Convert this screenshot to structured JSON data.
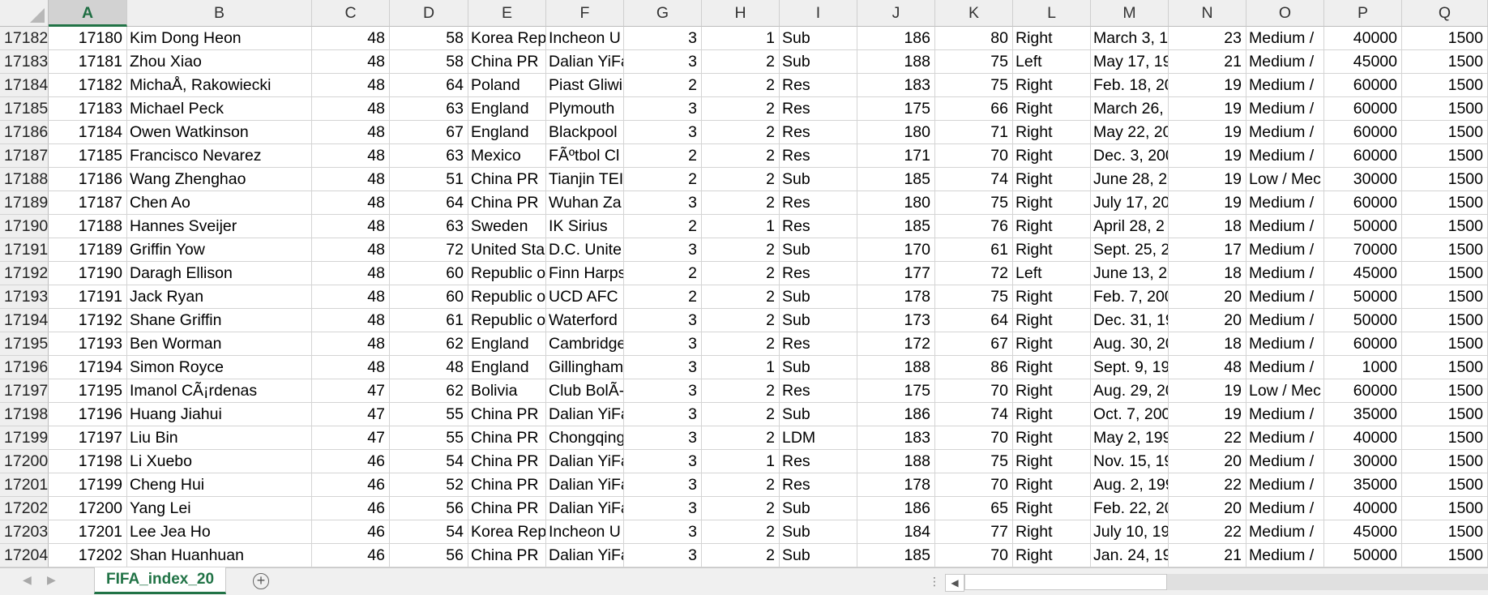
{
  "columns": [
    "A",
    "B",
    "C",
    "D",
    "E",
    "F",
    "G",
    "H",
    "I",
    "J",
    "K",
    "L",
    "M",
    "N",
    "O",
    "P",
    "Q"
  ],
  "active_column": "A",
  "rows": [
    {
      "row": "17182",
      "cells": [
        "17180",
        "Kim Dong Heon",
        "48",
        "58",
        "Korea Rep",
        "Incheon U",
        "3",
        "1",
        "Sub",
        "186",
        "80",
        "Right",
        "March 3, 1",
        "23",
        "Medium /",
        "40000",
        "1500"
      ]
    },
    {
      "row": "17183",
      "cells": [
        "17181",
        "Zhou Xiao",
        "48",
        "58",
        "China PR",
        "Dalian YiFa",
        "3",
        "2",
        "Sub",
        "188",
        "75",
        "Left",
        "May 17, 19",
        "21",
        "Medium /",
        "45000",
        "1500"
      ]
    },
    {
      "row": "17184",
      "cells": [
        "17182",
        "MichaÅ, Rakowiecki",
        "48",
        "64",
        "Poland",
        "Piast Gliwi",
        "2",
        "2",
        "Res",
        "183",
        "75",
        "Right",
        "Feb. 18, 20",
        "19",
        "Medium /",
        "60000",
        "1500"
      ]
    },
    {
      "row": "17185",
      "cells": [
        "17183",
        "Michael Peck",
        "48",
        "63",
        "England",
        "Plymouth",
        "3",
        "2",
        "Res",
        "175",
        "66",
        "Right",
        "March 26,",
        "19",
        "Medium /",
        "60000",
        "1500"
      ]
    },
    {
      "row": "17186",
      "cells": [
        "17184",
        "Owen Watkinson",
        "48",
        "67",
        "England",
        "Blackpool",
        "3",
        "2",
        "Res",
        "180",
        "71",
        "Right",
        "May 22, 20",
        "19",
        "Medium /",
        "60000",
        "1500"
      ]
    },
    {
      "row": "17187",
      "cells": [
        "17185",
        "Francisco Nevarez",
        "48",
        "63",
        "Mexico",
        "FÃºtbol Cl",
        "2",
        "2",
        "Res",
        "171",
        "70",
        "Right",
        "Dec. 3, 200",
        "19",
        "Medium /",
        "60000",
        "1500"
      ]
    },
    {
      "row": "17188",
      "cells": [
        "17186",
        "Wang Zhenghao",
        "48",
        "51",
        "China PR",
        "Tianjin TEI",
        "2",
        "2",
        "Sub",
        "185",
        "74",
        "Right",
        "June 28, 20",
        "19",
        "Low / Mec",
        "30000",
        "1500"
      ]
    },
    {
      "row": "17189",
      "cells": [
        "17187",
        "Chen Ao",
        "48",
        "64",
        "China PR",
        "Wuhan Za",
        "3",
        "2",
        "Res",
        "180",
        "75",
        "Right",
        "July 17, 20",
        "19",
        "Medium /",
        "60000",
        "1500"
      ]
    },
    {
      "row": "17190",
      "cells": [
        "17188",
        "Hannes Sveijer",
        "48",
        "63",
        "Sweden",
        "IK Sirius",
        "2",
        "1",
        "Res",
        "185",
        "76",
        "Right",
        "April 28, 2",
        "18",
        "Medium /",
        "50000",
        "1500"
      ]
    },
    {
      "row": "17191",
      "cells": [
        "17189",
        "Griffin Yow",
        "48",
        "72",
        "United Sta",
        "D.C. Unite",
        "3",
        "2",
        "Sub",
        "170",
        "61",
        "Right",
        "Sept. 25, 2",
        "17",
        "Medium /",
        "70000",
        "1500"
      ]
    },
    {
      "row": "17192",
      "cells": [
        "17190",
        "Daragh Ellison",
        "48",
        "60",
        "Republic o",
        "Finn Harps",
        "2",
        "2",
        "Res",
        "177",
        "72",
        "Left",
        "June 13, 20",
        "18",
        "Medium /",
        "45000",
        "1500"
      ]
    },
    {
      "row": "17193",
      "cells": [
        "17191",
        "Jack Ryan",
        "48",
        "60",
        "Republic o",
        "UCD AFC",
        "2",
        "2",
        "Sub",
        "178",
        "75",
        "Right",
        "Feb. 7, 200",
        "20",
        "Medium /",
        "50000",
        "1500"
      ]
    },
    {
      "row": "17194",
      "cells": [
        "17192",
        "Shane Griffin",
        "48",
        "61",
        "Republic o",
        "Waterford",
        "3",
        "2",
        "Sub",
        "173",
        "64",
        "Right",
        "Dec. 31, 19",
        "20",
        "Medium /",
        "50000",
        "1500"
      ]
    },
    {
      "row": "17195",
      "cells": [
        "17193",
        "Ben Worman",
        "48",
        "62",
        "England",
        "Cambridge",
        "3",
        "2",
        "Res",
        "172",
        "67",
        "Right",
        "Aug. 30, 20",
        "18",
        "Medium /",
        "60000",
        "1500"
      ]
    },
    {
      "row": "17196",
      "cells": [
        "17194",
        "Simon Royce",
        "48",
        "48",
        "England",
        "Gillingham",
        "3",
        "1",
        "Sub",
        "188",
        "86",
        "Right",
        "Sept. 9, 19",
        "48",
        "Medium /",
        "1000",
        "1500"
      ]
    },
    {
      "row": "17197",
      "cells": [
        "17195",
        "Imanol CÃ¡rdenas",
        "47",
        "62",
        "Bolivia",
        "Club BolÃ-",
        "3",
        "2",
        "Res",
        "175",
        "70",
        "Right",
        "Aug. 29, 20",
        "19",
        "Low / Mec",
        "60000",
        "1500"
      ]
    },
    {
      "row": "17198",
      "cells": [
        "17196",
        "Huang Jiahui",
        "47",
        "55",
        "China PR",
        "Dalian YiFa",
        "3",
        "2",
        "Sub",
        "186",
        "74",
        "Right",
        "Oct. 7, 200",
        "19",
        "Medium /",
        "35000",
        "1500"
      ]
    },
    {
      "row": "17199",
      "cells": [
        "17197",
        "Liu Bin",
        "47",
        "55",
        "China PR",
        "Chongqing",
        "3",
        "2",
        "LDM",
        "183",
        "70",
        "Right",
        "May 2, 199",
        "22",
        "Medium /",
        "40000",
        "1500"
      ]
    },
    {
      "row": "17200",
      "cells": [
        "17198",
        "Li Xuebo",
        "46",
        "54",
        "China PR",
        "Dalian YiFa",
        "3",
        "1",
        "Res",
        "188",
        "75",
        "Right",
        "Nov. 15, 19",
        "20",
        "Medium /",
        "30000",
        "1500"
      ]
    },
    {
      "row": "17201",
      "cells": [
        "17199",
        "Cheng Hui",
        "46",
        "52",
        "China PR",
        "Dalian YiFa",
        "3",
        "2",
        "Res",
        "178",
        "70",
        "Right",
        "Aug. 2, 199",
        "22",
        "Medium /",
        "35000",
        "1500"
      ]
    },
    {
      "row": "17202",
      "cells": [
        "17200",
        "Yang Lei",
        "46",
        "56",
        "China PR",
        "Dalian YiFa",
        "3",
        "2",
        "Sub",
        "186",
        "65",
        "Right",
        "Feb. 22, 20",
        "20",
        "Medium /",
        "40000",
        "1500"
      ]
    },
    {
      "row": "17203",
      "cells": [
        "17201",
        "Lee Jea Ho",
        "46",
        "54",
        "Korea Rep",
        "Incheon U",
        "3",
        "2",
        "Sub",
        "184",
        "77",
        "Right",
        "July 10, 19",
        "22",
        "Medium /",
        "45000",
        "1500"
      ]
    },
    {
      "row": "17204",
      "cells": [
        "17202",
        "Shan Huanhuan",
        "46",
        "56",
        "China PR",
        "Dalian YiFa",
        "3",
        "2",
        "Sub",
        "185",
        "70",
        "Right",
        "Jan. 24, 19",
        "21",
        "Medium /",
        "50000",
        "1500"
      ]
    }
  ],
  "sheet_tab": "FIFA_index_20",
  "add_sheet_symbol": "+",
  "nav_prev_symbol": "◀",
  "nav_next_symbol": "▶",
  "scroll_left_symbol": "◀",
  "splitter_symbol": "⋮"
}
